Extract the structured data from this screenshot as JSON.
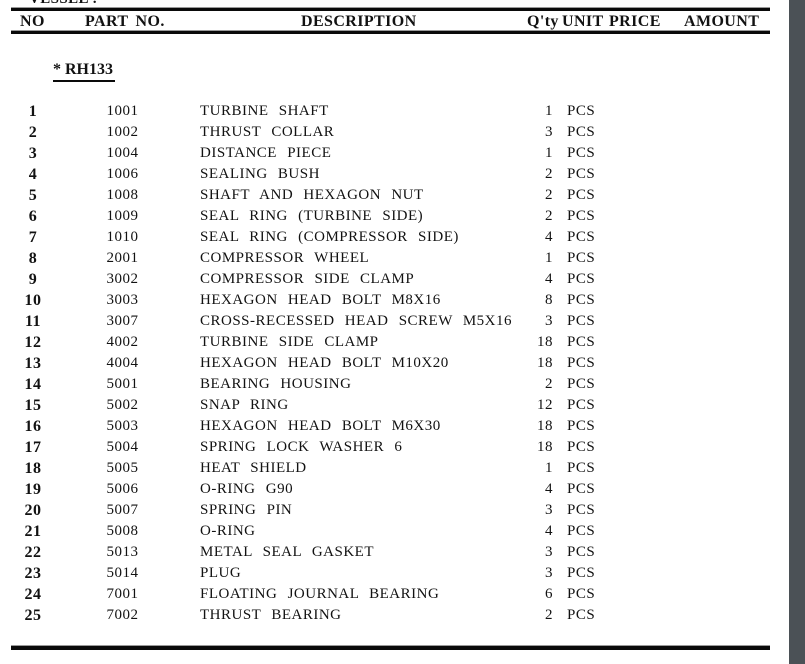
{
  "page": {
    "vessel_label": "VESSEL :",
    "group_heading": "* RH133"
  },
  "table": {
    "headers": {
      "no": "NO",
      "part_no": "PART NO.",
      "description": "DESCRIPTION",
      "qty": "Q'ty",
      "unit": "UNIT",
      "price": "PRICE",
      "amount": "AMOUNT"
    },
    "rows": [
      {
        "no": "1",
        "part_no": "1001",
        "description": "TURBINE SHAFT",
        "qty": "1",
        "unit": "PCS",
        "price": "",
        "amount": ""
      },
      {
        "no": "2",
        "part_no": "1002",
        "description": "THRUST COLLAR",
        "qty": "3",
        "unit": "PCS",
        "price": "",
        "amount": ""
      },
      {
        "no": "3",
        "part_no": "1004",
        "description": "DISTANCE PIECE",
        "qty": "1",
        "unit": "PCS",
        "price": "",
        "amount": ""
      },
      {
        "no": "4",
        "part_no": "1006",
        "description": "SEALING BUSH",
        "qty": "2",
        "unit": "PCS",
        "price": "",
        "amount": ""
      },
      {
        "no": "5",
        "part_no": "1008",
        "description": "SHAFT AND HEXAGON NUT",
        "qty": "2",
        "unit": "PCS",
        "price": "",
        "amount": ""
      },
      {
        "no": "6",
        "part_no": "1009",
        "description": "SEAL RING (TURBINE SIDE)",
        "qty": "2",
        "unit": "PCS",
        "price": "",
        "amount": ""
      },
      {
        "no": "7",
        "part_no": "1010",
        "description": "SEAL RING (COMPRESSOR SIDE)",
        "qty": "4",
        "unit": "PCS",
        "price": "",
        "amount": ""
      },
      {
        "no": "8",
        "part_no": "2001",
        "description": "COMPRESSOR WHEEL",
        "qty": "1",
        "unit": "PCS",
        "price": "",
        "amount": ""
      },
      {
        "no": "9",
        "part_no": "3002",
        "description": "COMPRESSOR SIDE CLAMP",
        "qty": "4",
        "unit": "PCS",
        "price": "",
        "amount": ""
      },
      {
        "no": "10",
        "part_no": "3003",
        "description": "HEXAGON HEAD BOLT M8X16",
        "qty": "8",
        "unit": "PCS",
        "price": "",
        "amount": ""
      },
      {
        "no": "11",
        "part_no": "3007",
        "description": "CROSS-RECESSED HEAD SCREW M5X16",
        "qty": "3",
        "unit": "PCS",
        "price": "",
        "amount": ""
      },
      {
        "no": "12",
        "part_no": "4002",
        "description": "TURBINE SIDE CLAMP",
        "qty": "18",
        "unit": "PCS",
        "price": "",
        "amount": ""
      },
      {
        "no": "13",
        "part_no": "4004",
        "description": "HEXAGON HEAD BOLT M10X20",
        "qty": "18",
        "unit": "PCS",
        "price": "",
        "amount": ""
      },
      {
        "no": "14",
        "part_no": "5001",
        "description": "BEARING HOUSING",
        "qty": "2",
        "unit": "PCS",
        "price": "",
        "amount": ""
      },
      {
        "no": "15",
        "part_no": "5002",
        "description": "SNAP RING",
        "qty": "12",
        "unit": "PCS",
        "price": "",
        "amount": ""
      },
      {
        "no": "16",
        "part_no": "5003",
        "description": "HEXAGON HEAD BOLT M6X30",
        "qty": "18",
        "unit": "PCS",
        "price": "",
        "amount": ""
      },
      {
        "no": "17",
        "part_no": "5004",
        "description": "SPRING LOCK WASHER 6",
        "qty": "18",
        "unit": "PCS",
        "price": "",
        "amount": ""
      },
      {
        "no": "18",
        "part_no": "5005",
        "description": "HEAT SHIELD",
        "qty": "1",
        "unit": "PCS",
        "price": "",
        "amount": ""
      },
      {
        "no": "19",
        "part_no": "5006",
        "description": "O-RING G90",
        "qty": "4",
        "unit": "PCS",
        "price": "",
        "amount": ""
      },
      {
        "no": "20",
        "part_no": "5007",
        "description": "SPRING PIN",
        "qty": "3",
        "unit": "PCS",
        "price": "",
        "amount": ""
      },
      {
        "no": "21",
        "part_no": "5008",
        "description": "O-RING",
        "qty": "4",
        "unit": "PCS",
        "price": "",
        "amount": ""
      },
      {
        "no": "22",
        "part_no": "5013",
        "description": "METAL SEAL GASKET",
        "qty": "3",
        "unit": "PCS",
        "price": "",
        "amount": ""
      },
      {
        "no": "23",
        "part_no": "5014",
        "description": "PLUG",
        "qty": "3",
        "unit": "PCS",
        "price": "",
        "amount": ""
      },
      {
        "no": "24",
        "part_no": "7001",
        "description": "FLOATING JOURNAL BEARING",
        "qty": "6",
        "unit": "PCS",
        "price": "",
        "amount": ""
      },
      {
        "no": "25",
        "part_no": "7002",
        "description": "THRUST BEARING",
        "qty": "2",
        "unit": "PCS",
        "price": "",
        "amount": ""
      }
    ]
  },
  "colors": {
    "viewer_background": "#4b5156",
    "page_background": "#ffffff",
    "text": "#121212",
    "rule": "#0a0a0a"
  }
}
